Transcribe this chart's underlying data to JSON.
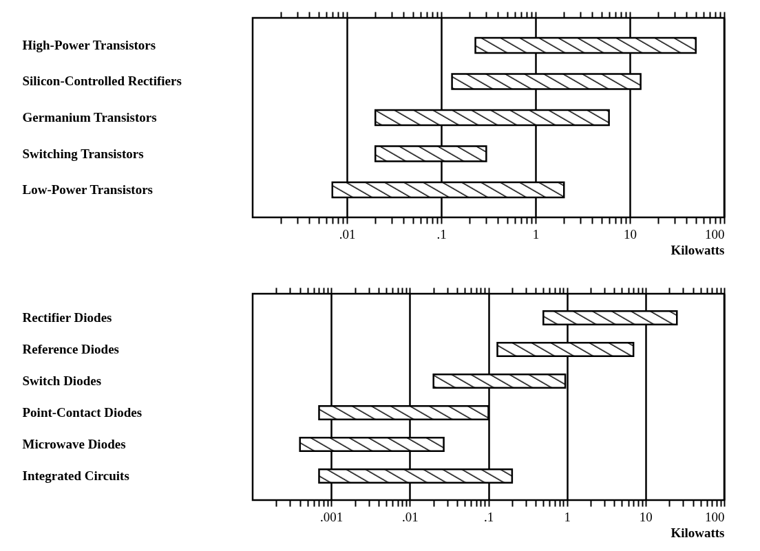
{
  "chart_data": [
    {
      "type": "bar",
      "orientation": "horizontal",
      "log": "x",
      "grid": "x",
      "xlabel": "Kilowatts",
      "color": "#000000",
      "categories": [
        "High-Power Transistors",
        "Silicon-Controlled Rectifiers",
        "Germanium Transistors",
        "Switching Transistors",
        "Low-Power Transistors"
      ],
      "base": [
        0.23,
        0.13,
        0.02,
        0.02,
        0.007
      ],
      "values": [
        49.77,
        12.87,
        5.98,
        0.28,
        1.993
      ],
      "xlim": [
        0.001,
        100
      ],
      "xticks": [
        {
          "value": 0.002,
          "label": null
        },
        {
          "value": 0.003,
          "label": null
        },
        {
          "value": 0.004,
          "label": null
        },
        {
          "value": 0.005,
          "label": null
        },
        {
          "value": 0.006,
          "label": null
        },
        {
          "value": 0.007,
          "label": null
        },
        {
          "value": 0.008,
          "label": null
        },
        {
          "value": 0.009,
          "label": null
        },
        {
          "value": 0.01,
          "label": ".01"
        },
        {
          "value": 0.02,
          "label": null
        },
        {
          "value": 0.03,
          "label": null
        },
        {
          "value": 0.04,
          "label": null
        },
        {
          "value": 0.05,
          "label": null
        },
        {
          "value": 0.06,
          "label": null
        },
        {
          "value": 0.07,
          "label": null
        },
        {
          "value": 0.08,
          "label": null
        },
        {
          "value": 0.09,
          "label": null
        },
        {
          "value": 0.1,
          "label": ".1"
        },
        {
          "value": 0.2,
          "label": null
        },
        {
          "value": 0.3,
          "label": null
        },
        {
          "value": 0.4,
          "label": null
        },
        {
          "value": 0.5,
          "label": null
        },
        {
          "value": 0.6,
          "label": null
        },
        {
          "value": 0.7,
          "label": null
        },
        {
          "value": 0.8,
          "label": null
        },
        {
          "value": 0.9,
          "label": null
        },
        1,
        {
          "value": 2,
          "label": null
        },
        {
          "value": 3,
          "label": null
        },
        {
          "value": 4,
          "label": null
        },
        {
          "value": 5,
          "label": null
        },
        {
          "value": 6,
          "label": null
        },
        {
          "value": 7,
          "label": null
        },
        {
          "value": 8,
          "label": null
        },
        {
          "value": 9,
          "label": null
        },
        10,
        {
          "value": 20,
          "label": null
        },
        {
          "value": 30,
          "label": null
        },
        {
          "value": 40,
          "label": null
        },
        {
          "value": 50,
          "label": null
        },
        {
          "value": 60,
          "label": null
        },
        {
          "value": 70,
          "label": null
        },
        {
          "value": 80,
          "label": null
        },
        {
          "value": 90,
          "label": null
        },
        100
      ]
    },
    {
      "type": "bar",
      "orientation": "horizontal",
      "log": "x",
      "grid": "x",
      "xlabel": "Kilowatts",
      "color": "#000000",
      "categories": [
        "Rectifier Diodes",
        "Reference Diodes",
        "Switch Diodes",
        "Point-Contact Diodes",
        "Microwave Diodes",
        "Integrated Circuits"
      ],
      "base": [
        0.5,
        0.13,
        0.02,
        0.0007,
        0.0004,
        0.0007
      ],
      "values": [
        24.5,
        6.87,
        0.93,
        0.0993,
        0.0266,
        0.1993
      ],
      "xlim": [
        0.0001,
        100
      ],
      "xticks": [
        {
          "value": 0.0002,
          "label": null
        },
        {
          "value": 0.0003,
          "label": null
        },
        {
          "value": 0.0004,
          "label": null
        },
        {
          "value": 0.0005,
          "label": null
        },
        {
          "value": 0.0006,
          "label": null
        },
        {
          "value": 0.0007,
          "label": null
        },
        {
          "value": 0.0008,
          "label": null
        },
        {
          "value": 0.0009,
          "label": null
        },
        {
          "value": 0.001,
          "label": ".001"
        },
        {
          "value": 0.002,
          "label": null
        },
        {
          "value": 0.003,
          "label": null
        },
        {
          "value": 0.004,
          "label": null
        },
        {
          "value": 0.005,
          "label": null
        },
        {
          "value": 0.006,
          "label": null
        },
        {
          "value": 0.007,
          "label": null
        },
        {
          "value": 0.008,
          "label": null
        },
        {
          "value": 0.009,
          "label": null
        },
        {
          "value": 0.01,
          "label": ".01"
        },
        {
          "value": 0.02,
          "label": null
        },
        {
          "value": 0.03,
          "label": null
        },
        {
          "value": 0.04,
          "label": null
        },
        {
          "value": 0.05,
          "label": null
        },
        {
          "value": 0.06,
          "label": null
        },
        {
          "value": 0.07,
          "label": null
        },
        {
          "value": 0.08,
          "label": null
        },
        {
          "value": 0.09,
          "label": null
        },
        {
          "value": 0.1,
          "label": ".1"
        },
        {
          "value": 0.2,
          "label": null
        },
        {
          "value": 0.3,
          "label": null
        },
        {
          "value": 0.4,
          "label": null
        },
        {
          "value": 0.5,
          "label": null
        },
        {
          "value": 0.6,
          "label": null
        },
        {
          "value": 0.7,
          "label": null
        },
        {
          "value": 0.8,
          "label": null
        },
        {
          "value": 0.9,
          "label": null
        },
        1,
        {
          "value": 2,
          "label": null
        },
        {
          "value": 3,
          "label": null
        },
        {
          "value": 4,
          "label": null
        },
        {
          "value": 5,
          "label": null
        },
        {
          "value": 6,
          "label": null
        },
        {
          "value": 7,
          "label": null
        },
        {
          "value": 8,
          "label": null
        },
        {
          "value": 9,
          "label": null
        },
        10,
        {
          "value": 20,
          "label": null
        },
        {
          "value": 30,
          "label": null
        },
        {
          "value": 40,
          "label": null
        },
        {
          "value": 50,
          "label": null
        },
        {
          "value": 60,
          "label": null
        },
        {
          "value": 70,
          "label": null
        },
        {
          "value": 80,
          "label": null
        },
        {
          "value": 90,
          "label": null
        },
        100
      ]
    }
  ]
}
